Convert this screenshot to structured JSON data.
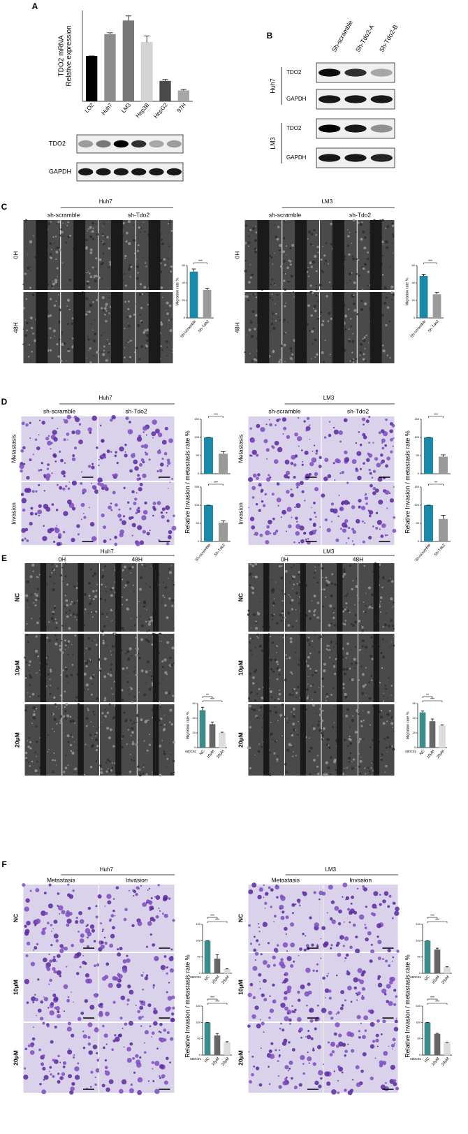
{
  "A": {
    "label": "A",
    "chart": {
      "type": "bar",
      "ylabel": [
        "TDO2 mRNA",
        "Relative expression"
      ],
      "categories": [
        "LO2",
        "Huh7",
        "LM3",
        "Hep3B",
        "HepG2",
        "97H"
      ],
      "values": [
        1,
        1.48,
        1.78,
        1.3,
        0.45,
        0.24
      ],
      "errors": [
        0,
        0.03,
        0.1,
        0.14,
        0.03,
        0.02
      ],
      "colors": [
        "#000000",
        "#8c8c8c",
        "#777777",
        "#d4d4d4",
        "#4a4a4a",
        "#a6a6a6"
      ],
      "ylim": [
        0,
        2
      ]
    },
    "blot": [
      "TDO2",
      "GAPDH"
    ]
  },
  "B": {
    "label": "B",
    "lanes": [
      "Sh-scramble",
      "Sh-Tdo2-A",
      "Sh-Tdo2-B"
    ],
    "groups": [
      {
        "name": "Huh7",
        "rows": [
          "TDO2",
          "GAPDH"
        ]
      },
      {
        "name": "LM3",
        "rows": [
          "TDO2",
          "GAPDH"
        ]
      }
    ]
  },
  "C": {
    "label": "C",
    "sides": [
      {
        "cell": "Huh7",
        "groups": [
          "sh-scramble",
          "sh-Tdo2"
        ],
        "rows": [
          "0H",
          "48H"
        ],
        "chart": {
          "type": "bar",
          "ylabel": "Migration rate %",
          "categories": [
            "Sh-scramble",
            "Sh-Tdo2"
          ],
          "values": [
            53,
            32
          ],
          "errors": [
            3,
            2
          ],
          "colors": [
            "#1a8aa8",
            "#9a9a9a"
          ],
          "ylim": [
            0,
            60
          ],
          "yticks": [
            0,
            20,
            40,
            60
          ],
          "significance": [
            "***"
          ]
        }
      },
      {
        "cell": "LM3",
        "groups": [
          "sh-scramble",
          "sh-Tdo2"
        ],
        "rows": [
          "0H",
          "48H"
        ],
        "chart": {
          "type": "bar",
          "ylabel": "Migration rate %",
          "categories": [
            "Sh-scramble",
            "Sh-Tdo2"
          ],
          "values": [
            48,
            27
          ],
          "errors": [
            2,
            2
          ],
          "colors": [
            "#1a8aa8",
            "#9a9a9a"
          ],
          "ylim": [
            0,
            60
          ],
          "yticks": [
            0,
            20,
            40,
            60
          ],
          "significance": [
            "***"
          ]
        }
      }
    ]
  },
  "D": {
    "label": "D",
    "sides": [
      {
        "cell": "Huh7",
        "groups": [
          "sh-scramble",
          "sh-Tdo2"
        ],
        "rows": [
          "Metastasis",
          "Invasion"
        ],
        "ylabel": "Relative Invasion / metastasis rate %",
        "charts": [
          {
            "type": "bar",
            "values": [
              100,
              55
            ],
            "errors": [
              0,
              6
            ],
            "colors": [
              "#1a8aa8",
              "#9a9a9a"
            ],
            "ylim": [
              0,
              150
            ],
            "yticks": [
              0,
              50,
              100,
              150
            ],
            "significance": [
              "***"
            ]
          },
          {
            "type": "bar",
            "categories": [
              "Sh-scramble",
              "Sh-Tdo2"
            ],
            "values": [
              100,
              52
            ],
            "errors": [
              0,
              5
            ],
            "colors": [
              "#1a8aa8",
              "#9a9a9a"
            ],
            "ylim": [
              0,
              150
            ],
            "yticks": [
              0,
              50,
              100,
              150
            ],
            "significance": [
              "***"
            ]
          }
        ]
      },
      {
        "cell": "LM3",
        "groups": [
          "sh-scramble",
          "sh-Tdo2"
        ],
        "rows": [
          "Metastasis",
          "Invasion"
        ],
        "ylabel": "Relative Invasion / metastasis rate %",
        "charts": [
          {
            "type": "bar",
            "values": [
              100,
              47
            ],
            "errors": [
              0,
              5
            ],
            "colors": [
              "#1a8aa8",
              "#9a9a9a"
            ],
            "ylim": [
              0,
              150
            ],
            "yticks": [
              0,
              50,
              100,
              150
            ],
            "significance": [
              "***"
            ]
          },
          {
            "type": "bar",
            "categories": [
              "Sh-scramble",
              "Sh-Tdo2"
            ],
            "values": [
              100,
              62
            ],
            "errors": [
              0,
              10
            ],
            "colors": [
              "#1a8aa8",
              "#9a9a9a"
            ],
            "ylim": [
              0,
              150
            ],
            "yticks": [
              0,
              50,
              100,
              150
            ],
            "significance": [
              "**"
            ]
          }
        ]
      }
    ]
  },
  "E": {
    "label": "E",
    "sides": [
      {
        "cell": "Huh7",
        "groups": [
          "0H",
          "48H"
        ],
        "rows": [
          "NC",
          "10μM",
          "20μM"
        ],
        "chart": {
          "type": "bar",
          "ylabel": "Migration rate %",
          "inhibitor": "680C91",
          "categories": [
            "NC",
            "10μM",
            "20μM"
          ],
          "values": [
            51,
            32,
            20
          ],
          "errors": [
            4,
            3,
            1
          ],
          "colors": [
            "#3d8c8c",
            "#666666",
            "#dddddd"
          ],
          "ylim": [
            0,
            60
          ],
          "yticks": [
            0,
            20,
            40,
            60
          ],
          "significance": [
            "**",
            "***"
          ]
        }
      },
      {
        "cell": "LM3",
        "groups": [
          "0H",
          "48H"
        ],
        "rows": [
          "NC",
          "10μM",
          "20μM"
        ],
        "chart": {
          "type": "bar",
          "ylabel": "Migration rate %",
          "inhibitor": "680C91",
          "categories": [
            "NC",
            "10μM",
            "20μM"
          ],
          "values": [
            48,
            36,
            30
          ],
          "errors": [
            2,
            3,
            1
          ],
          "colors": [
            "#3d8c8c",
            "#666666",
            "#dddddd"
          ],
          "ylim": [
            0,
            60
          ],
          "yticks": [
            0,
            20,
            40,
            60
          ],
          "significance": [
            "**",
            "***"
          ]
        }
      }
    ]
  },
  "F": {
    "label": "F",
    "sides": [
      {
        "cell": "Huh7",
        "groups": [
          "Metastasis",
          "Invasion"
        ],
        "rows": [
          "NC",
          "10μM",
          "20μM"
        ],
        "ylabel": "Relative Invasion / metastasis rate %",
        "charts": [
          {
            "type": "bar",
            "inhibitor": "680C91",
            "categories": [
              "NC",
              "10μM",
              "20μM"
            ],
            "values": [
              100,
              45,
              12
            ],
            "errors": [
              0,
              12,
              2
            ],
            "colors": [
              "#3d8c8c",
              "#666666",
              "#dddddd"
            ],
            "ylim": [
              0,
              150
            ],
            "yticks": [
              0,
              50,
              100,
              150
            ],
            "significance": [
              "***",
              "***"
            ]
          },
          {
            "type": "bar",
            "inhibitor": "680C91",
            "categories": [
              "NC",
              "10μM",
              "20μM"
            ],
            "values": [
              100,
              60,
              38
            ],
            "errors": [
              0,
              6,
              3
            ],
            "colors": [
              "#3d8c8c",
              "#666666",
              "#dddddd"
            ],
            "ylim": [
              0,
              150
            ],
            "yticks": [
              0,
              50,
              100,
              150
            ],
            "significance": [
              "***",
              "***"
            ]
          }
        ]
      },
      {
        "cell": "LM3",
        "groups": [
          "Metastasis",
          "Invasion"
        ],
        "rows": [
          "NC",
          "10μM",
          "20μM"
        ],
        "ylabel": "Relative Invasion / metastasis rate %",
        "charts": [
          {
            "type": "bar",
            "inhibitor": "680C91",
            "categories": [
              "NC",
              "10μM",
              "20μM"
            ],
            "values": [
              100,
              73,
              18
            ],
            "errors": [
              0,
              4,
              2
            ],
            "colors": [
              "#3d8c8c",
              "#666666",
              "#dddddd"
            ],
            "ylim": [
              0,
              150
            ],
            "yticks": [
              0,
              50,
              100,
              150
            ],
            "significance": [
              "***",
              "***"
            ]
          },
          {
            "type": "bar",
            "inhibitor": "680C91",
            "categories": [
              "NC",
              "10μM",
              "20μM"
            ],
            "values": [
              100,
              65,
              38
            ],
            "errors": [
              0,
              2,
              2
            ],
            "colors": [
              "#3d8c8c",
              "#666666",
              "#dddddd"
            ],
            "ylim": [
              0,
              150
            ],
            "yticks": [
              0,
              50,
              100,
              150
            ],
            "significance": [
              "***",
              "***"
            ]
          }
        ]
      }
    ]
  }
}
